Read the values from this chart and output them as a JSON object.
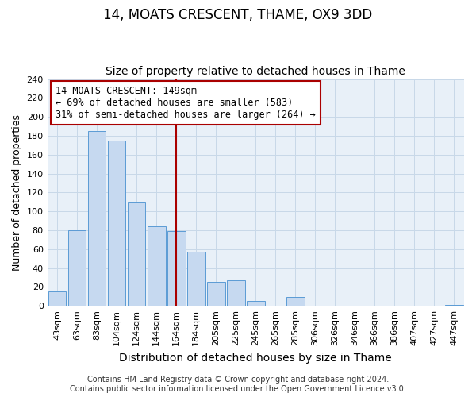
{
  "title": "14, MOATS CRESCENT, THAME, OX9 3DD",
  "subtitle": "Size of property relative to detached houses in Thame",
  "xlabel": "Distribution of detached houses by size in Thame",
  "ylabel": "Number of detached properties",
  "bar_labels": [
    "43sqm",
    "63sqm",
    "83sqm",
    "104sqm",
    "124sqm",
    "144sqm",
    "164sqm",
    "184sqm",
    "205sqm",
    "225sqm",
    "245sqm",
    "265sqm",
    "285sqm",
    "306sqm",
    "326sqm",
    "346sqm",
    "366sqm",
    "386sqm",
    "407sqm",
    "427sqm",
    "447sqm"
  ],
  "bar_values": [
    15,
    80,
    185,
    175,
    109,
    84,
    79,
    57,
    25,
    27,
    5,
    0,
    9,
    0,
    0,
    0,
    0,
    0,
    0,
    0,
    1
  ],
  "bar_color": "#c6d9f0",
  "bar_edge_color": "#5b9bd5",
  "vline_x": 6.0,
  "vline_color": "#aa0000",
  "ylim": [
    0,
    240
  ],
  "yticks": [
    0,
    20,
    40,
    60,
    80,
    100,
    120,
    140,
    160,
    180,
    200,
    220,
    240
  ],
  "annotation_title": "14 MOATS CRESCENT: 149sqm",
  "annotation_line1": "← 69% of detached houses are smaller (583)",
  "annotation_line2": "31% of semi-detached houses are larger (264) →",
  "annotation_box_color": "#ffffff",
  "annotation_box_edge": "#aa0000",
  "footer_line1": "Contains HM Land Registry data © Crown copyright and database right 2024.",
  "footer_line2": "Contains public sector information licensed under the Open Government Licence v3.0.",
  "title_fontsize": 12,
  "subtitle_fontsize": 10,
  "xlabel_fontsize": 10,
  "ylabel_fontsize": 9,
  "tick_fontsize": 8,
  "footer_fontsize": 7,
  "axes_bg": "#e8f0f8",
  "grid_color": "#c8d8e8"
}
